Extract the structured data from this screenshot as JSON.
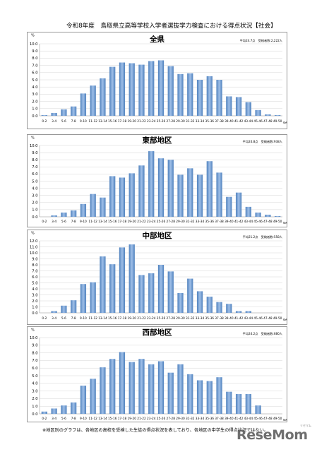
{
  "document": {
    "title": "令和8年度　鳥取県立高等学校入学者選抜学力検査における得点状況【社会】",
    "footnote": "※地区別のグラフは、各地区の高校を受検した生徒の得点状況を表しており、各地区の中学生の得点状況ではない。",
    "watermark": {
      "kana": "リセマム",
      "logo": "ReseMom"
    }
  },
  "chart_data": [
    {
      "type": "bar",
      "title": "全県",
      "note": "平均24.7点　受検者数:2,222人",
      "ylabel": "%",
      "xlabel": "得点",
      "ylim": [
        0,
        10
      ],
      "yticks": [
        "0.0",
        "1.0",
        "2.0",
        "3.0",
        "4.0",
        "5.0",
        "6.0",
        "7.0",
        "8.0",
        "9.0",
        "10.0"
      ],
      "grid": "horizontal",
      "bar_color": "#4f81bd",
      "categories": [
        "0-2",
        "3-4",
        "5-6",
        "7-8",
        "9-10",
        "11-12",
        "13-14",
        "15-16",
        "17-18",
        "19-20",
        "21-22",
        "23-24",
        "25-26",
        "27-28",
        "29-30",
        "31-32",
        "33-34",
        "35-36",
        "37-38",
        "39-40",
        "41-42",
        "43-44",
        "45-46",
        "47-48",
        "49-50"
      ],
      "values": [
        0.1,
        0.4,
        0.9,
        1.3,
        3.1,
        4.2,
        5.2,
        6.8,
        7.4,
        7.3,
        7.1,
        7.6,
        7.7,
        6.9,
        5.8,
        5.9,
        5.0,
        5.5,
        5.0,
        2.7,
        2.6,
        1.9,
        0.8,
        0.2,
        0.1
      ]
    },
    {
      "type": "bar",
      "title": "東部地区",
      "note": "平均24.8点　受検者数:938人",
      "ylabel": "%",
      "xlabel": "得点",
      "ylim": [
        0,
        10
      ],
      "yticks": [
        "0.0",
        "1.0",
        "2.0",
        "3.0",
        "4.0",
        "5.0",
        "6.0",
        "7.0",
        "8.0",
        "9.0",
        "10.0"
      ],
      "grid": "horizontal",
      "bar_color": "#4f81bd",
      "categories": [
        "0-2",
        "3-4",
        "5-6",
        "7-8",
        "9-10",
        "11-12",
        "13-14",
        "15-16",
        "17-18",
        "19-20",
        "21-22",
        "23-24",
        "25-26",
        "27-28",
        "29-30",
        "31-32",
        "33-34",
        "35-36",
        "37-38",
        "39-40",
        "41-42",
        "43-44",
        "45-46",
        "47-48",
        "49-50"
      ],
      "values": [
        0.0,
        0.2,
        0.6,
        0.9,
        1.8,
        3.2,
        2.7,
        5.7,
        5.5,
        6.1,
        7.2,
        9.2,
        8.2,
        8.0,
        5.9,
        6.8,
        5.9,
        7.8,
        6.2,
        2.8,
        3.4,
        1.4,
        0.6,
        0.3,
        0.1
      ]
    },
    {
      "type": "bar",
      "title": "中部地区",
      "note": "平均21.2点　受検者数:558人",
      "ylabel": "%",
      "xlabel": "得点",
      "ylim": [
        0,
        12
      ],
      "yticks": [
        "0.0",
        "1.0",
        "2.0",
        "3.0",
        "4.0",
        "5.0",
        "6.0",
        "7.0",
        "8.0",
        "9.0",
        "10.0",
        "11.0",
        "12.0"
      ],
      "grid": "horizontal",
      "bar_color": "#4f81bd",
      "categories": [
        "0-2",
        "3-4",
        "5-6",
        "7-8",
        "9-10",
        "11-12",
        "13-14",
        "15-16",
        "17-18",
        "19-20",
        "21-22",
        "23-24",
        "25-26",
        "27-28",
        "29-30",
        "31-32",
        "33-34",
        "35-36",
        "37-38",
        "39-40",
        "41-42",
        "43-44",
        "45-46",
        "47-48",
        "49-50"
      ],
      "values": [
        0.0,
        0.3,
        1.2,
        2.1,
        4.8,
        5.1,
        9.4,
        8.1,
        10.9,
        11.4,
        6.3,
        6.6,
        8.0,
        6.9,
        3.3,
        5.7,
        3.6,
        2.7,
        1.8,
        1.5,
        0.3,
        0.3,
        0.0,
        0.0,
        0.0
      ]
    },
    {
      "type": "bar",
      "title": "西部地区",
      "note": "平均24.2点　受検者数:680人",
      "ylabel": "%",
      "xlabel": "得点",
      "ylim": [
        0,
        10
      ],
      "yticks": [
        "0.0",
        "1.0",
        "2.0",
        "3.0",
        "4.0",
        "5.0",
        "6.0",
        "7.0",
        "8.0",
        "9.0",
        "10.0"
      ],
      "grid": "horizontal",
      "bar_color": "#4f81bd",
      "categories": [
        "0-2",
        "3-4",
        "5-6",
        "7-8",
        "9-10",
        "11-12",
        "13-14",
        "15-16",
        "17-18",
        "19-20",
        "21-22",
        "23-24",
        "25-26",
        "27-28",
        "29-30",
        "31-32",
        "33-34",
        "35-36",
        "37-38",
        "39-40",
        "41-42",
        "43-44",
        "45-46",
        "47-48",
        "49-50"
      ],
      "values": [
        0.3,
        0.7,
        1.1,
        1.5,
        3.7,
        4.6,
        6.1,
        7.2,
        8.1,
        6.8,
        7.2,
        6.5,
        6.9,
        5.4,
        6.5,
        5.2,
        4.4,
        4.3,
        4.8,
        2.9,
        2.6,
        2.6,
        1.1,
        0.0,
        0.0
      ]
    }
  ]
}
